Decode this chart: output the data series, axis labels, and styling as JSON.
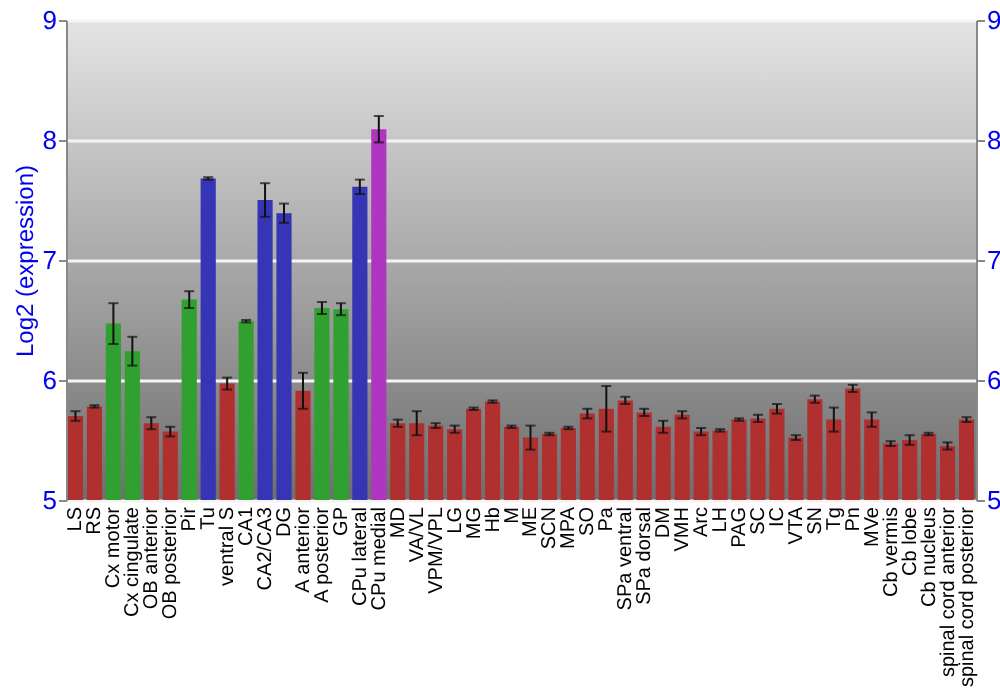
{
  "chart_data": {
    "type": "bar",
    "ylabel": "Log2 (expression)",
    "categories": [
      "LS",
      "RS",
      "Cx motor",
      "Cx cingulate",
      "OB anterior",
      "OB posterior",
      "Pir",
      "Tu",
      "ventral S",
      "CA1",
      "CA2/CA3",
      "DG",
      "A anterior",
      "A posterior",
      "GP",
      "CPu lateral",
      "CPu medial",
      "MD",
      "VA/VL",
      "VPM/VPL",
      "LG",
      "MG",
      "Hb",
      "M",
      "ME",
      "SCN",
      "MPA",
      "SO",
      "Pa",
      "SPa ventral",
      "SPa dorsal",
      "DM",
      "VMH",
      "Arc",
      "LH",
      "PAG",
      "SC",
      "IC",
      "VTA",
      "SN",
      "Tg",
      "Pn",
      "MVe",
      "Cb vermis",
      "Cb lobe",
      "Cb nucleus",
      "spinal cord anterior",
      "spinal cord posterior"
    ],
    "values": [
      5.7,
      5.78,
      6.47,
      6.24,
      5.64,
      5.57,
      6.67,
      7.68,
      5.97,
      6.49,
      7.5,
      7.39,
      5.91,
      6.6,
      6.59,
      7.61,
      8.09,
      5.64,
      5.64,
      5.62,
      5.59,
      5.76,
      5.82,
      5.61,
      5.52,
      5.55,
      5.6,
      5.72,
      5.76,
      5.83,
      5.73,
      5.61,
      5.71,
      5.57,
      5.58,
      5.67,
      5.68,
      5.76,
      5.52,
      5.84,
      5.67,
      5.93,
      5.67,
      5.47,
      5.5,
      5.55,
      5.45,
      5.67
    ],
    "errors": [
      0.04,
      0.01,
      0.17,
      0.12,
      0.05,
      0.04,
      0.07,
      0.01,
      0.05,
      0.01,
      0.14,
      0.08,
      0.15,
      0.05,
      0.05,
      0.06,
      0.11,
      0.03,
      0.1,
      0.02,
      0.03,
      0.01,
      0.01,
      0.01,
      0.1,
      0.01,
      0.01,
      0.04,
      0.19,
      0.03,
      0.03,
      0.05,
      0.03,
      0.03,
      0.01,
      0.01,
      0.03,
      0.04,
      0.02,
      0.03,
      0.1,
      0.03,
      0.06,
      0.02,
      0.04,
      0.01,
      0.03,
      0.02
    ],
    "colors": [
      "#b03030",
      "#b03030",
      "#30a030",
      "#30a030",
      "#b03030",
      "#b03030",
      "#30a030",
      "#3535b5",
      "#b03030",
      "#30a030",
      "#3535b5",
      "#3535b5",
      "#b03030",
      "#30a030",
      "#30a030",
      "#3535b5",
      "#b035c0",
      "#b03030",
      "#b03030",
      "#b03030",
      "#b03030",
      "#b03030",
      "#b03030",
      "#b03030",
      "#b03030",
      "#b03030",
      "#b03030",
      "#b03030",
      "#b03030",
      "#b03030",
      "#b03030",
      "#b03030",
      "#b03030",
      "#b03030",
      "#b03030",
      "#b03030",
      "#b03030",
      "#b03030",
      "#b03030",
      "#b03030",
      "#b03030",
      "#b03030",
      "#b03030",
      "#b03030",
      "#b03030",
      "#b03030",
      "#b03030",
      "#b03030"
    ],
    "ylim": [
      5,
      9
    ],
    "yticks": [
      5,
      6,
      7,
      8,
      9
    ],
    "y2lim": [
      5,
      9
    ],
    "y2ticks": [
      5,
      6,
      7,
      8,
      9
    ],
    "grid": "y"
  }
}
